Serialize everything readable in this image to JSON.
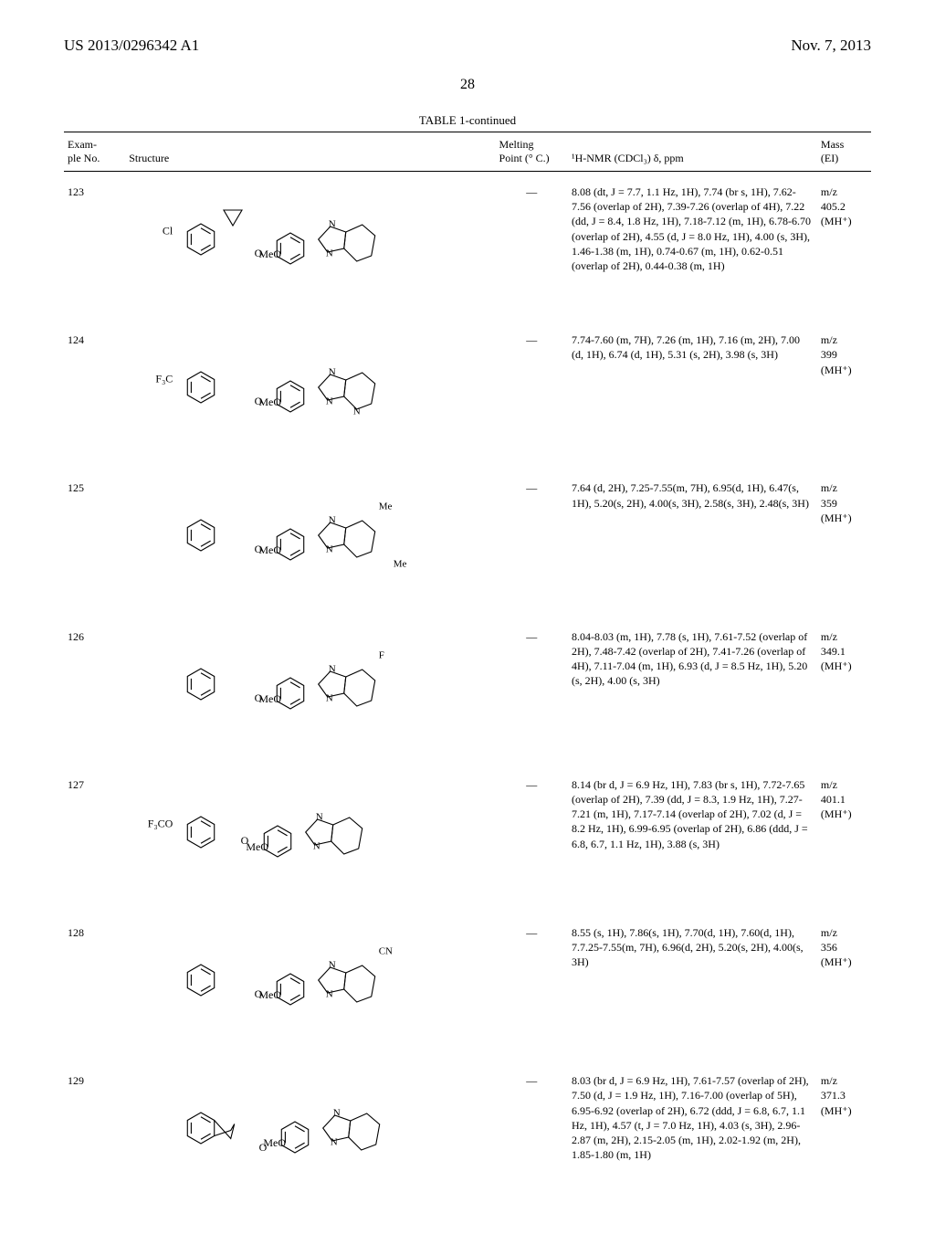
{
  "header": {
    "patent_number": "US 2013/0296342 A1",
    "date": "Nov. 7, 2013",
    "page_number": "28"
  },
  "table": {
    "title": "TABLE 1-continued",
    "columns": {
      "example": "Exam-\nple No.",
      "structure": "Structure",
      "melting_point": "Melting\nPoint (° C.)",
      "nmr": "¹H-NMR (CDCl₃) δ, ppm",
      "mass": "Mass\n(EI)"
    },
    "rows": [
      {
        "example_no": "123",
        "structure": {
          "type": "chemical-structure",
          "left_substituent": "Cl",
          "linker": "CH(cyclopropyl)-O",
          "meta_substituent": "MeO",
          "right_heterocycle": "imidazo[1,2-a]pyridine",
          "ring_substituents": []
        },
        "melting_point": "—",
        "nmr": "8.08 (dt, J = 7.7, 1.1 Hz, 1H), 7.74 (br s, 1H), 7.62-7.56 (overlap of 2H), 7.39-7.26 (overlap of 4H), 7.22 (dd, J = 8.4, 1.8 Hz, 1H), 7.18-7.12 (m, 1H), 6.78-6.70 (overlap of 2H), 4.55 (d, J = 8.0 Hz, 1H), 4.00 (s, 3H), 1.46-1.38 (m, 1H), 0.74-0.67 (m, 1H), 0.62-0.51 (overlap of 2H), 0.44-0.38 (m, 1H)",
        "mass": "m/z\n405.2\n(MH⁺)"
      },
      {
        "example_no": "124",
        "structure": {
          "type": "chemical-structure",
          "left_substituent": "F₃C",
          "linker": "CH2-O",
          "meta_substituent": "MeO",
          "right_heterocycle": "imidazo[1,2-a]pyrimidine",
          "ring_substituents": []
        },
        "melting_point": "—",
        "nmr": "7.74-7.60 (m, 7H), 7.26 (m, 1H), 7.16 (m, 2H), 7.00 (d, 1H), 6.74 (d, 1H), 5.31 (s, 2H), 3.98 (s, 3H)",
        "mass": "m/z\n399\n(MH⁺)"
      },
      {
        "example_no": "125",
        "structure": {
          "type": "chemical-structure",
          "left_substituent": "",
          "linker": "CH2-O",
          "meta_substituent": "MeO",
          "right_heterocycle": "imidazo[1,2-a]pyridine",
          "ring_substituents": [
            "Me",
            "Me"
          ]
        },
        "melting_point": "—",
        "nmr": "7.64 (d, 2H), 7.25-7.55(m, 7H), 6.95(d, 1H), 6.47(s, 1H), 5.20(s, 2H), 4.00(s, 3H), 2.58(s, 3H), 2.48(s, 3H)",
        "mass": "m/z\n359\n(MH⁺)"
      },
      {
        "example_no": "126",
        "structure": {
          "type": "chemical-structure",
          "left_substituent": "",
          "linker": "CH2-O",
          "meta_substituent": "MeO",
          "right_heterocycle": "imidazo[1,2-a]pyridine",
          "ring_substituents": [
            "F"
          ]
        },
        "melting_point": "—",
        "nmr": "8.04-8.03 (m, 1H), 7.78 (s, 1H), 7.61-7.52 (overlap of 2H), 7.48-7.42 (overlap of 2H), 7.41-7.26 (overlap of 4H), 7.11-7.04 (m, 1H), 6.93 (d, J = 8.5 Hz, 1H), 5.20 (s, 2H), 4.00 (s, 3H)",
        "mass": "m/z\n349.1\n(MH⁺)"
      },
      {
        "example_no": "127",
        "structure": {
          "type": "chemical-structure",
          "left_substituent": "F₃CO",
          "linker": "O",
          "meta_substituent": "MeO",
          "right_heterocycle": "imidazo[1,2-a]pyridine",
          "ring_substituents": []
        },
        "melting_point": "—",
        "nmr": "8.14 (br d, J = 6.9 Hz, 1H), 7.83 (br s, 1H), 7.72-7.65 (overlap of 2H), 7.39 (dd, J = 8.3, 1.9 Hz, 1H), 7.27-7.21 (m, 1H), 7.17-7.14 (overlap of 2H), 7.02 (d, J = 8.2 Hz, 1H), 6.99-6.95 (overlap of 2H), 6.86 (ddd, J = 6.8, 6.7, 1.1 Hz, 1H), 3.88 (s, 3H)",
        "mass": "m/z\n401.1\n(MH⁺)"
      },
      {
        "example_no": "128",
        "structure": {
          "type": "chemical-structure",
          "left_substituent": "",
          "linker": "CH2-O",
          "meta_substituent": "MeO",
          "right_heterocycle": "imidazo[1,2-a]pyridine",
          "ring_substituents": [
            "CN"
          ]
        },
        "melting_point": "—",
        "nmr": "8.55 (s, 1H), 7.86(s, 1H), 7.70(d, 1H), 7.60(d, 1H), 7.7.25-7.55(m, 7H), 6.96(d, 2H), 5.20(s, 2H), 4.00(s, 3H)",
        "mass": "m/z\n356\n(MH⁺)"
      },
      {
        "example_no": "129",
        "structure": {
          "type": "chemical-structure",
          "left_substituent": "",
          "linker": "tetralin-O",
          "meta_substituent": "MeO",
          "right_heterocycle": "imidazo[1,2-a]pyridine",
          "ring_substituents": []
        },
        "melting_point": "—",
        "nmr": "8.03 (br d, J = 6.9 Hz, 1H), 7.61-7.57 (overlap of 2H), 7.50 (d, J = 1.9 Hz, 1H), 7.16-7.00 (overlap of 5H), 6.95-6.92 (overlap of 2H), 6.72 (ddd, J = 6.8, 6.7, 1.1 Hz, 1H), 4.57 (t, J = 7.0 Hz, 1H), 4.03 (s, 3H), 2.96-2.87 (m, 2H), 2.15-2.05 (m, 1H), 2.02-1.92 (m, 2H), 1.85-1.80 (m, 1H)",
        "mass": "m/z\n371.3\n(MH⁺)"
      }
    ]
  },
  "style": {
    "font_family": "Times New Roman",
    "header_fontsize_pt": 13,
    "body_fontsize_pt": 9,
    "line_color": "#000000",
    "bond_stroke_width": 1.1,
    "background": "#ffffff",
    "text_color": "#000000"
  }
}
